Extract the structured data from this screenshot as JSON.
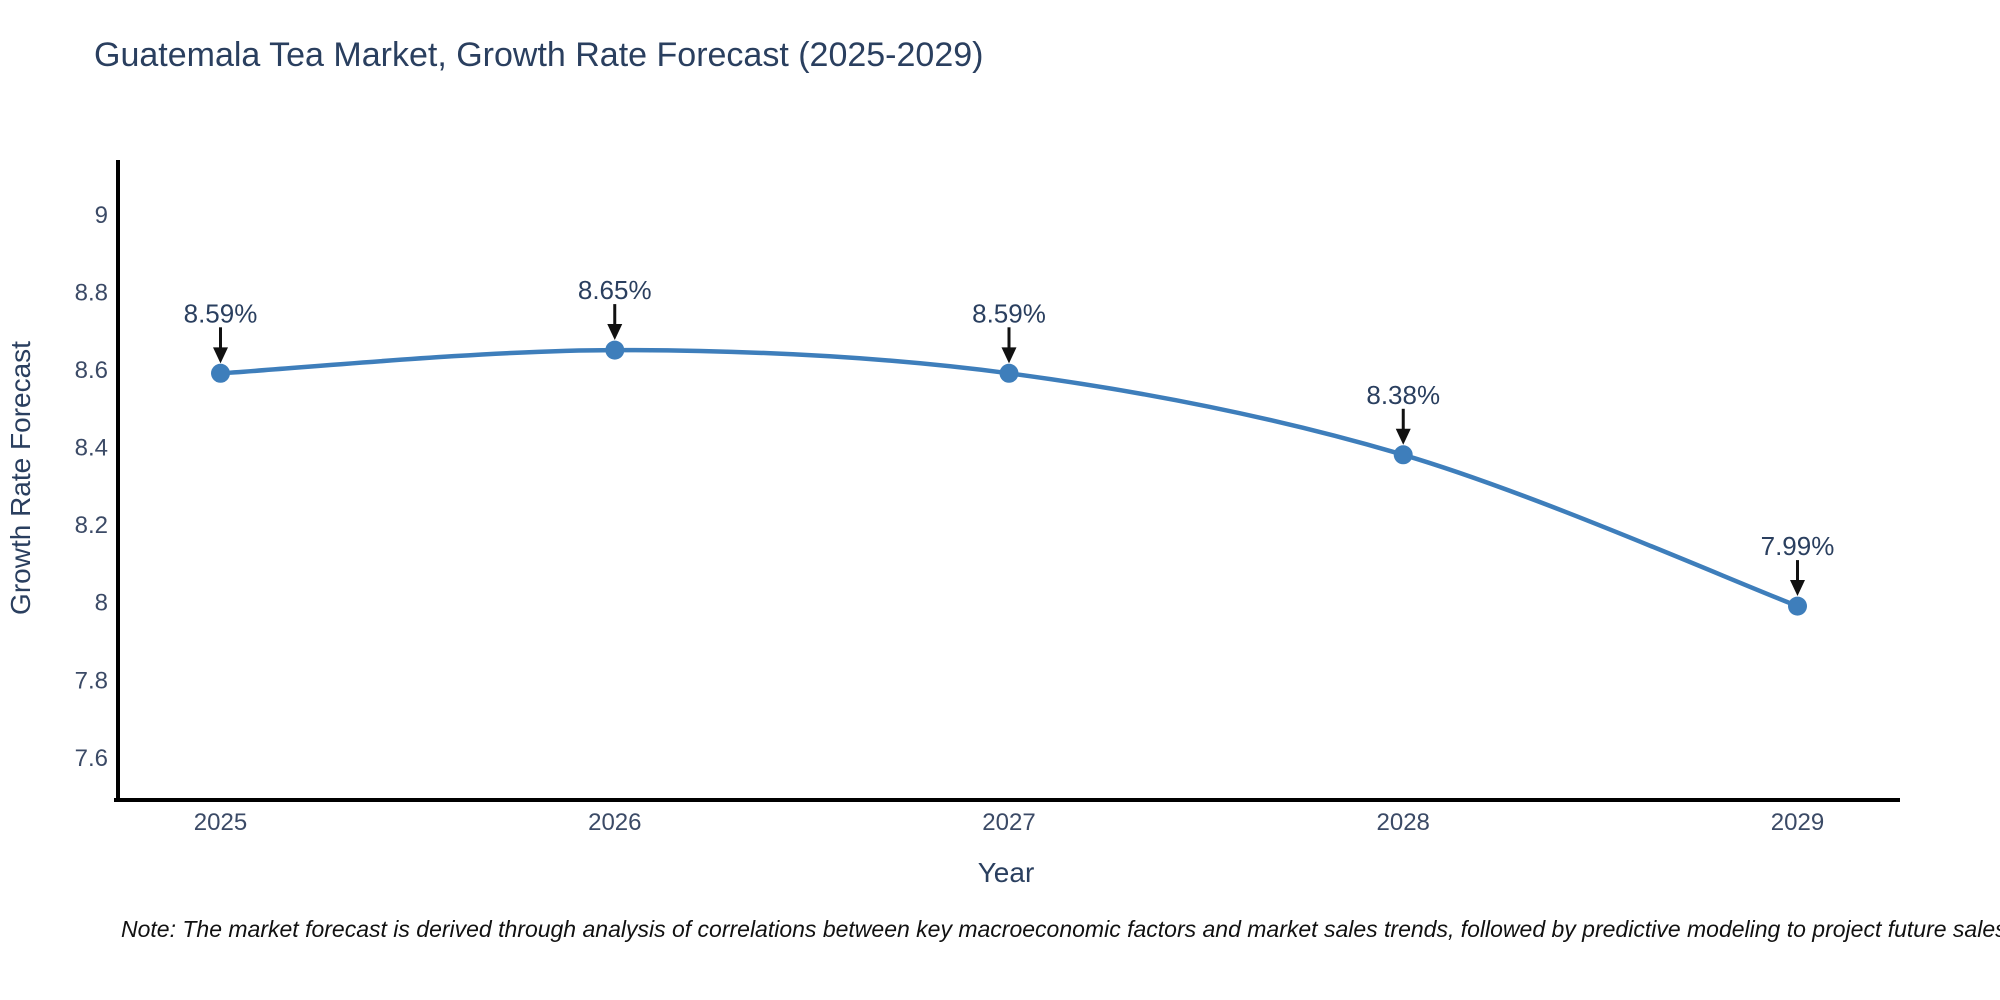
{
  "page": {
    "background": "#ffffff"
  },
  "chart_data": {
    "type": "line",
    "title": "Guatemala Tea Market, Growth Rate Forecast (2025-2029)",
    "xlabel": "Year",
    "ylabel": "Growth Rate Forecast",
    "categories": [
      "2025",
      "2026",
      "2027",
      "2028",
      "2029"
    ],
    "series": [
      {
        "name": "Growth Rate Forecast",
        "values": [
          8.59,
          8.65,
          8.59,
          8.38,
          7.99
        ],
        "color": "#3E7EBB",
        "line_shape": "spline",
        "markers": true
      }
    ],
    "point_labels": [
      "8.59%",
      "8.65%",
      "8.59%",
      "8.38%",
      "7.99%"
    ],
    "y_ticks": [
      {
        "value": 9,
        "label": "9"
      },
      {
        "value": 8.8,
        "label": "8.8"
      },
      {
        "value": 8.6,
        "label": "8.6"
      },
      {
        "value": 8.4,
        "label": "8.4"
      },
      {
        "value": 8.2,
        "label": "8.2"
      },
      {
        "value": 8,
        "label": "8"
      },
      {
        "value": 7.8,
        "label": "7.8"
      },
      {
        "value": 7.6,
        "label": "7.6"
      }
    ],
    "xlim": [
      2024.74,
      2029.26
    ],
    "ylim": [
      7.49,
      9.14
    ],
    "grid": false,
    "legend_position": "none",
    "colors": {
      "line": "#3E7EBB",
      "marker": "#3E7EBB",
      "text": "#2a3f5f",
      "tick_text": "#3b4a66",
      "axis": "#000000",
      "arrow": "#111111"
    }
  },
  "footnote": {
    "text": "Note: The market forecast is derived through analysis of correlations between key macroeconomic factors and market sales trends, followed by predictive modeling to project future sales"
  }
}
